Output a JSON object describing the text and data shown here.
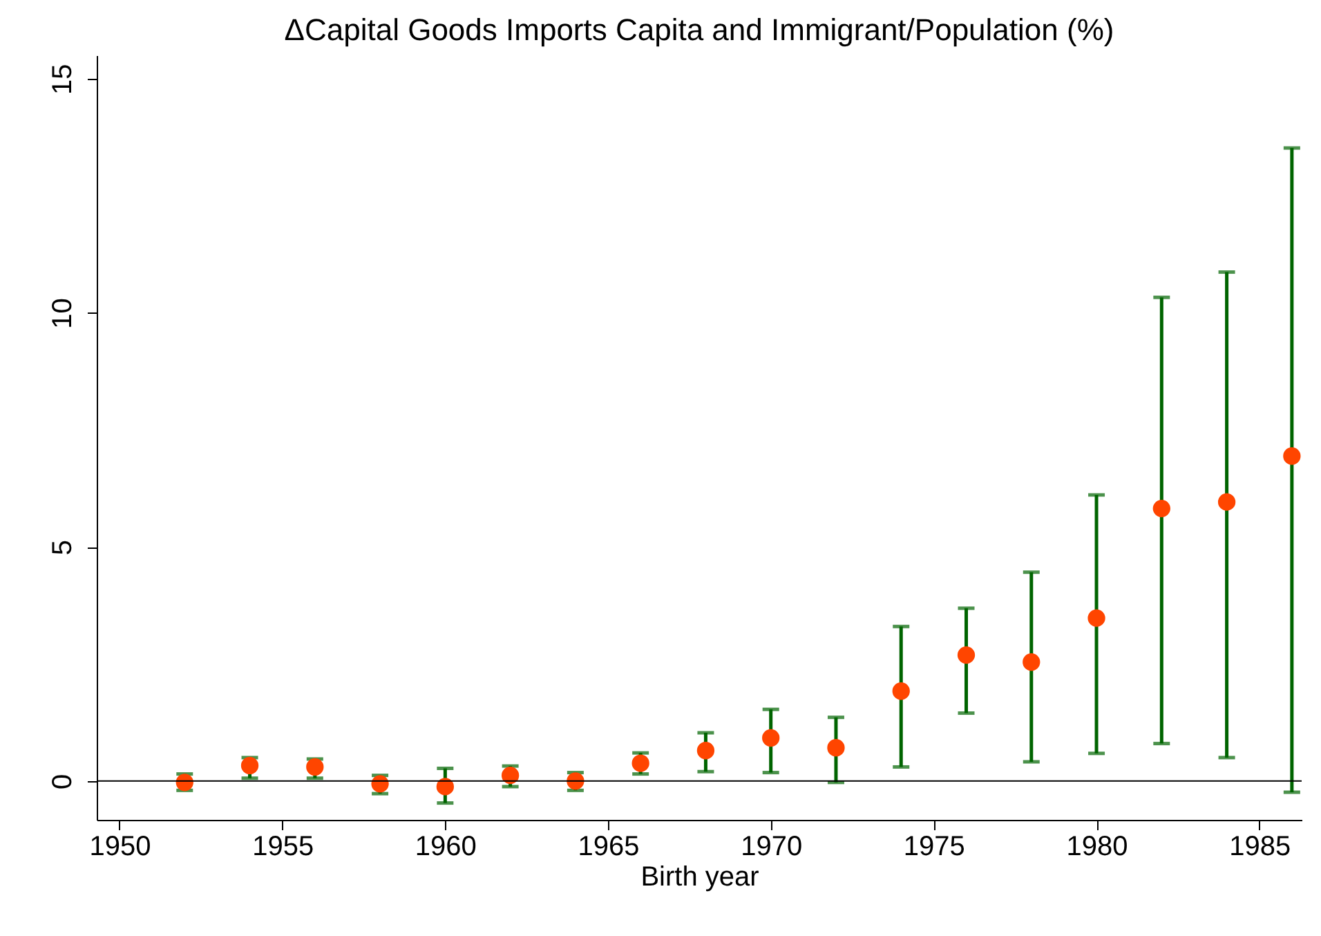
{
  "chart_data": {
    "type": "scatter",
    "title": "ΔCapital Goods Imports Capita and Immigrant/Population (%)",
    "xlabel": "Birth year",
    "x": [
      1952,
      1954,
      1956,
      1958,
      1960,
      1962,
      1964,
      1966,
      1968,
      1970,
      1972,
      1974,
      1976,
      1978,
      1980,
      1982,
      1984,
      1986
    ],
    "series": [
      {
        "color": "#ff4500",
        "values": [
          -0.03,
          0.33,
          0.3,
          -0.06,
          -0.12,
          0.12,
          0.0,
          0.38,
          0.65,
          0.92,
          0.71,
          1.92,
          2.69,
          2.54,
          3.48,
          5.82,
          5.96,
          6.94
        ],
        "errors": [
          [
            -0.2,
            0.15
          ],
          [
            0.06,
            0.5
          ],
          [
            0.06,
            0.47
          ],
          [
            -0.27,
            0.12
          ],
          [
            -0.47,
            0.27
          ],
          [
            -0.12,
            0.32
          ],
          [
            -0.2,
            0.18
          ],
          [
            0.15,
            0.6
          ],
          [
            0.2,
            1.03
          ],
          [
            0.18,
            1.53
          ],
          [
            -0.03,
            1.36
          ],
          [
            0.3,
            3.3
          ],
          [
            1.45,
            3.69
          ],
          [
            0.41,
            4.46
          ],
          [
            0.59,
            6.11
          ],
          [
            0.8,
            10.33
          ],
          [
            0.5,
            10.87
          ],
          [
            -0.24,
            13.52
          ]
        ]
      }
    ],
    "xlim": [
      1949.3,
      1986.3
    ],
    "xticks": [
      1950,
      1955,
      1960,
      1965,
      1970,
      1975,
      1980,
      1985
    ],
    "ylim": [
      -0.83,
      15.5
    ],
    "yticks": [
      0,
      5,
      10,
      15
    ],
    "ref_lines": [
      {
        "axis": "y",
        "value": 0,
        "color": "#000000"
      }
    ],
    "grid": false,
    "marker": "circle"
  }
}
